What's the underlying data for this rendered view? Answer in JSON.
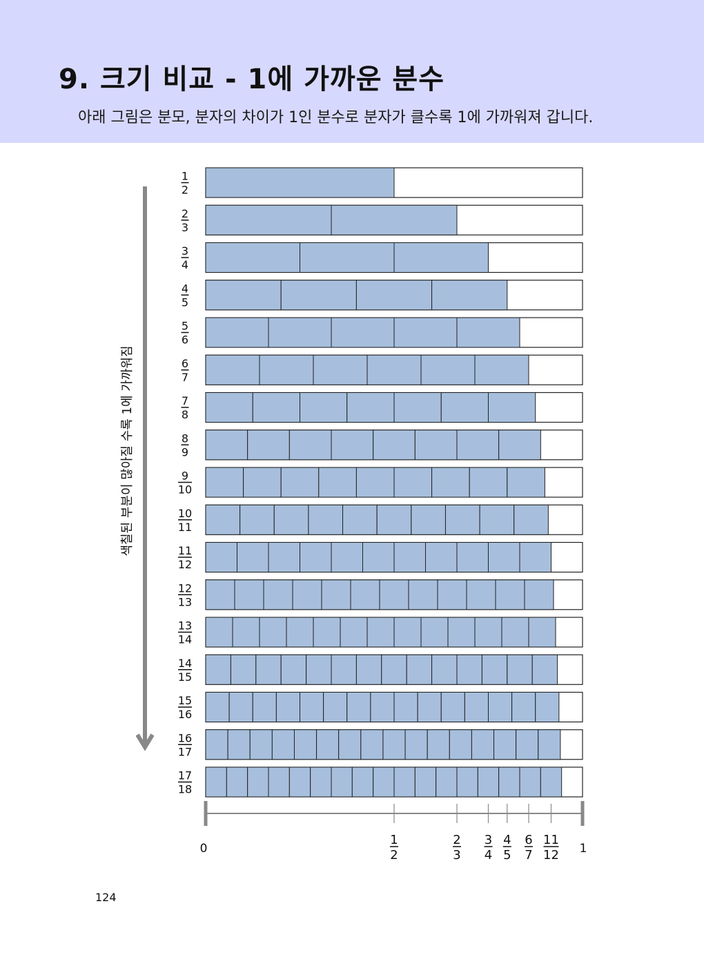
{
  "header": {
    "title": "9. 크기 비교 - 1에 가까운 분수",
    "subtitle": "아래 그림은 분모, 분자의 차이가 1인 분수로 분자가 클수록 1에 가까워져 갑니다."
  },
  "side_label": "색칠된 부분이 많아질 수록 1에 가까워짐",
  "page_number": "124",
  "colors": {
    "header_bg": "#d7d8fd",
    "bar_fill": "#a7bfdd",
    "bar_stroke": "#222222",
    "axis": "#888888"
  },
  "fractions": [
    {
      "numerator": "1",
      "denominator": "2"
    },
    {
      "numerator": "2",
      "denominator": "3"
    },
    {
      "numerator": "3",
      "denominator": "4"
    },
    {
      "numerator": "4",
      "denominator": "5"
    },
    {
      "numerator": "5",
      "denominator": "6"
    },
    {
      "numerator": "6",
      "denominator": "7"
    },
    {
      "numerator": "7",
      "denominator": "8"
    },
    {
      "numerator": "8",
      "denominator": "9"
    },
    {
      "numerator": "9",
      "denominator": "10"
    },
    {
      "numerator": "10",
      "denominator": "11"
    },
    {
      "numerator": "11",
      "denominator": "12"
    },
    {
      "numerator": "12",
      "denominator": "13"
    },
    {
      "numerator": "13",
      "denominator": "14"
    },
    {
      "numerator": "14",
      "denominator": "15"
    },
    {
      "numerator": "15",
      "denominator": "16"
    },
    {
      "numerator": "16",
      "denominator": "17"
    },
    {
      "numerator": "17",
      "denominator": "18"
    }
  ],
  "number_line": {
    "start_label": "0",
    "end_label": "1",
    "ticks": [
      {
        "numerator": "1",
        "denominator": "2"
      },
      {
        "numerator": "2",
        "denominator": "3"
      },
      {
        "numerator": "3",
        "denominator": "4"
      },
      {
        "numerator": "4",
        "denominator": "5"
      },
      {
        "numerator": "6",
        "denominator": "7"
      },
      {
        "numerator": "11",
        "denominator": "12"
      }
    ]
  }
}
